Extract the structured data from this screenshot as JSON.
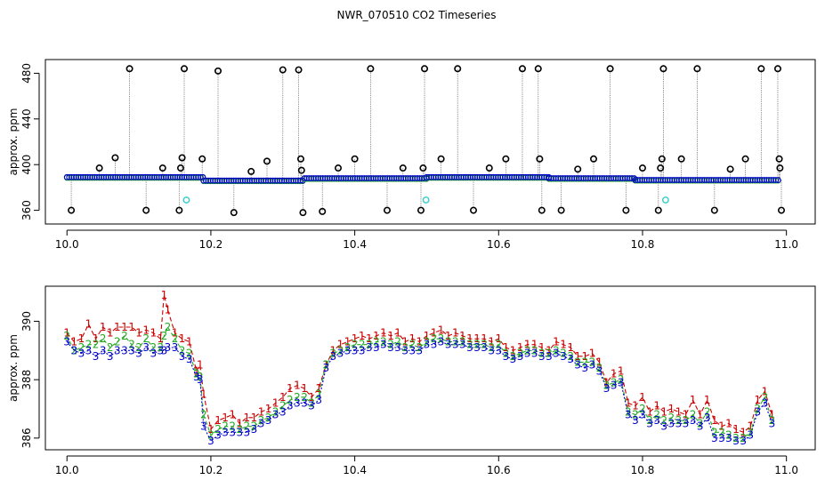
{
  "title": "NWR_070510  CO2 Timeseries",
  "colors": {
    "series1": "#cc0000",
    "series2": "#22aa22",
    "series3": "#0000cc",
    "outlier": "#000000",
    "flagged": "#33cccc",
    "spike_line": "#888888",
    "frame": "#000000"
  },
  "chart_data": [
    {
      "type": "scatter",
      "panel": "top",
      "title": "NWR_070510  CO2 Timeseries",
      "xlabel": "",
      "ylabel": "approx. ppm",
      "xlim": [
        9.97,
        11.04
      ],
      "ylim": [
        348,
        492
      ],
      "x_ticks": [
        "10.0",
        "10.2",
        "10.4",
        "10.6",
        "10.8",
        "11.0"
      ],
      "x_tick_values": [
        10.0,
        10.2,
        10.4,
        10.6,
        10.8,
        11.0
      ],
      "y_ticks": [
        "360",
        "400",
        "440",
        "480"
      ],
      "y_tick_values": [
        360,
        400,
        440,
        480
      ],
      "grid": false,
      "baseline_segments": [
        {
          "x_start": 10.0,
          "x_end": 10.19,
          "y": 389
        },
        {
          "x_start": 10.19,
          "x_end": 10.33,
          "y": 386
        },
        {
          "x_start": 10.33,
          "x_end": 10.5,
          "y": 388
        },
        {
          "x_start": 10.5,
          "x_end": 10.67,
          "y": 389
        },
        {
          "x_start": 10.67,
          "x_end": 10.79,
          "y": 388
        },
        {
          "x_start": 10.79,
          "x_end": 10.99,
          "y": 386.5
        }
      ],
      "outliers": [
        {
          "x": 10.006,
          "y": 360
        },
        {
          "x": 10.045,
          "y": 397
        },
        {
          "x": 10.067,
          "y": 406
        },
        {
          "x": 10.087,
          "y": 484
        },
        {
          "x": 10.11,
          "y": 360
        },
        {
          "x": 10.133,
          "y": 397
        },
        {
          "x": 10.156,
          "y": 360
        },
        {
          "x": 10.158,
          "y": 397
        },
        {
          "x": 10.16,
          "y": 406
        },
        {
          "x": 10.163,
          "y": 484
        },
        {
          "x": 10.188,
          "y": 405
        },
        {
          "x": 10.21,
          "y": 482
        },
        {
          "x": 10.232,
          "y": 358
        },
        {
          "x": 10.256,
          "y": 394
        },
        {
          "x": 10.278,
          "y": 403
        },
        {
          "x": 10.3,
          "y": 483
        },
        {
          "x": 10.322,
          "y": 483
        },
        {
          "x": 10.325,
          "y": 405
        },
        {
          "x": 10.326,
          "y": 395
        },
        {
          "x": 10.328,
          "y": 358
        },
        {
          "x": 10.355,
          "y": 359
        },
        {
          "x": 10.377,
          "y": 397
        },
        {
          "x": 10.4,
          "y": 405
        },
        {
          "x": 10.422,
          "y": 484
        },
        {
          "x": 10.445,
          "y": 360
        },
        {
          "x": 10.467,
          "y": 397
        },
        {
          "x": 10.492,
          "y": 360
        },
        {
          "x": 10.495,
          "y": 397
        },
        {
          "x": 10.497,
          "y": 484
        },
        {
          "x": 10.52,
          "y": 405
        },
        {
          "x": 10.543,
          "y": 484
        },
        {
          "x": 10.565,
          "y": 360
        },
        {
          "x": 10.587,
          "y": 397
        },
        {
          "x": 10.61,
          "y": 405
        },
        {
          "x": 10.633,
          "y": 484
        },
        {
          "x": 10.655,
          "y": 484
        },
        {
          "x": 10.657,
          "y": 405
        },
        {
          "x": 10.66,
          "y": 360
        },
        {
          "x": 10.687,
          "y": 360
        },
        {
          "x": 10.71,
          "y": 396
        },
        {
          "x": 10.732,
          "y": 405
        },
        {
          "x": 10.755,
          "y": 484
        },
        {
          "x": 10.777,
          "y": 360
        },
        {
          "x": 10.8,
          "y": 397
        },
        {
          "x": 10.822,
          "y": 360
        },
        {
          "x": 10.825,
          "y": 397
        },
        {
          "x": 10.827,
          "y": 405
        },
        {
          "x": 10.829,
          "y": 484
        },
        {
          "x": 10.854,
          "y": 405
        },
        {
          "x": 10.876,
          "y": 484
        },
        {
          "x": 10.9,
          "y": 360
        },
        {
          "x": 10.922,
          "y": 396
        },
        {
          "x": 10.943,
          "y": 405
        },
        {
          "x": 10.965,
          "y": 484
        },
        {
          "x": 10.988,
          "y": 484
        },
        {
          "x": 10.99,
          "y": 405
        },
        {
          "x": 10.991,
          "y": 397
        },
        {
          "x": 10.993,
          "y": 360
        }
      ],
      "flagged": [
        {
          "x": 10.166,
          "y": 369
        },
        {
          "x": 10.499,
          "y": 369
        },
        {
          "x": 10.832,
          "y": 369
        }
      ]
    },
    {
      "type": "line",
      "panel": "bottom",
      "xlabel": "",
      "ylabel": "approx. ppm",
      "xlim": [
        9.97,
        11.04
      ],
      "ylim": [
        385.6,
        391.2
      ],
      "x_ticks": [
        "10.0",
        "10.2",
        "10.4",
        "10.6",
        "10.8",
        "11.0"
      ],
      "x_tick_values": [
        10.0,
        10.2,
        10.4,
        10.6,
        10.8,
        11.0
      ],
      "y_ticks": [
        "386",
        "388",
        "390"
      ],
      "y_tick_values": [
        386,
        388,
        390
      ],
      "grid": false,
      "markers": [
        "1",
        "2",
        "3"
      ],
      "series": [
        {
          "marker": "1",
          "x": [
            10.0,
            10.01,
            10.02,
            10.03,
            10.04,
            10.05,
            10.06,
            10.07,
            10.08,
            10.09,
            10.1,
            10.11,
            10.12,
            10.13,
            10.135,
            10.14,
            10.15,
            10.16,
            10.17,
            10.18,
            10.185,
            10.19,
            10.2,
            10.21,
            10.22,
            10.23,
            10.24,
            10.25,
            10.26,
            10.27,
            10.28,
            10.29,
            10.3,
            10.31,
            10.32,
            10.33,
            10.34,
            10.35,
            10.36,
            10.37,
            10.38,
            10.39,
            10.4,
            10.41,
            10.42,
            10.43,
            10.44,
            10.45,
            10.46,
            10.47,
            10.48,
            10.49,
            10.5,
            10.51,
            10.52,
            10.53,
            10.54,
            10.55,
            10.56,
            10.57,
            10.58,
            10.59,
            10.6,
            10.61,
            10.62,
            10.63,
            10.64,
            10.65,
            10.66,
            10.67,
            10.68,
            10.69,
            10.7,
            10.71,
            10.72,
            10.73,
            10.74,
            10.75,
            10.76,
            10.77,
            10.78,
            10.79,
            10.8,
            10.81,
            10.82,
            10.83,
            10.84,
            10.85,
            10.86,
            10.87,
            10.88,
            10.89,
            10.9,
            10.91,
            10.92,
            10.93,
            10.94,
            10.95,
            10.96,
            10.97,
            10.98
          ],
          "values": [
            389.6,
            389.3,
            389.4,
            389.9,
            389.4,
            389.8,
            389.6,
            389.8,
            389.8,
            389.8,
            389.6,
            389.7,
            389.6,
            389.4,
            390.9,
            390.4,
            389.6,
            389.4,
            389.3,
            388.3,
            388.5,
            387.5,
            386.3,
            386.6,
            386.7,
            386.8,
            386.5,
            386.7,
            386.7,
            386.9,
            387.0,
            387.2,
            387.4,
            387.7,
            387.8,
            387.7,
            387.4,
            387.7,
            388.5,
            389.0,
            389.2,
            389.3,
            389.4,
            389.5,
            389.4,
            389.5,
            389.6,
            389.5,
            389.6,
            389.3,
            389.4,
            389.3,
            389.5,
            389.6,
            389.7,
            389.5,
            389.6,
            389.5,
            389.4,
            389.4,
            389.4,
            389.3,
            389.4,
            389.1,
            389.0,
            389.1,
            389.2,
            389.2,
            389.1,
            389.0,
            389.3,
            389.2,
            389.1,
            388.8,
            388.8,
            388.9,
            388.6,
            387.9,
            388.2,
            388.3,
            387.2,
            387.1,
            387.4,
            386.9,
            387.1,
            386.9,
            387.0,
            386.9,
            386.8,
            387.3,
            386.8,
            387.3,
            386.6,
            386.4,
            386.5,
            386.3,
            386.2,
            386.4,
            387.3,
            387.6,
            386.8
          ]
        },
        {
          "marker": "2",
          "x": [
            10.0,
            10.01,
            10.02,
            10.03,
            10.04,
            10.05,
            10.06,
            10.07,
            10.08,
            10.09,
            10.1,
            10.11,
            10.12,
            10.13,
            10.135,
            10.14,
            10.15,
            10.16,
            10.17,
            10.18,
            10.185,
            10.19,
            10.2,
            10.21,
            10.22,
            10.23,
            10.24,
            10.25,
            10.26,
            10.27,
            10.28,
            10.29,
            10.3,
            10.31,
            10.32,
            10.33,
            10.34,
            10.35,
            10.36,
            10.37,
            10.38,
            10.39,
            10.4,
            10.41,
            10.42,
            10.43,
            10.44,
            10.45,
            10.46,
            10.47,
            10.48,
            10.49,
            10.5,
            10.51,
            10.52,
            10.53,
            10.54,
            10.55,
            10.56,
            10.57,
            10.58,
            10.59,
            10.6,
            10.61,
            10.62,
            10.63,
            10.64,
            10.65,
            10.66,
            10.67,
            10.68,
            10.69,
            10.7,
            10.71,
            10.72,
            10.73,
            10.74,
            10.75,
            10.76,
            10.77,
            10.78,
            10.79,
            10.8,
            10.81,
            10.82,
            10.83,
            10.84,
            10.85,
            10.86,
            10.87,
            10.88,
            10.89,
            10.9,
            10.91,
            10.92,
            10.93,
            10.94,
            10.95,
            10.96,
            10.97,
            10.98
          ],
          "values": [
            389.5,
            389.0,
            389.1,
            389.2,
            389.2,
            389.4,
            389.1,
            389.3,
            389.5,
            389.2,
            389.1,
            389.4,
            389.1,
            389.1,
            389.5,
            389.8,
            389.4,
            389.0,
            388.9,
            388.2,
            388.1,
            386.8,
            386.1,
            386.3,
            386.4,
            386.4,
            386.3,
            386.4,
            386.4,
            386.6,
            386.7,
            386.9,
            387.1,
            387.3,
            387.4,
            387.4,
            387.2,
            387.5,
            388.5,
            388.9,
            389.0,
            389.1,
            389.2,
            389.2,
            389.2,
            389.3,
            389.3,
            389.2,
            389.3,
            389.1,
            389.2,
            389.1,
            389.3,
            389.4,
            389.4,
            389.3,
            389.3,
            389.3,
            389.2,
            389.2,
            389.2,
            389.1,
            389.2,
            388.9,
            388.8,
            388.9,
            389.0,
            389.0,
            388.9,
            388.9,
            389.0,
            388.9,
            388.8,
            388.6,
            388.6,
            388.6,
            388.4,
            387.8,
            387.9,
            388.0,
            386.9,
            386.8,
            387.0,
            386.6,
            386.8,
            386.6,
            386.7,
            386.6,
            386.6,
            386.8,
            386.5,
            386.9,
            386.2,
            386.2,
            386.1,
            386.0,
            386.0,
            386.2,
            387.0,
            387.4,
            386.6
          ]
        },
        {
          "marker": "3",
          "x": [
            10.0,
            10.01,
            10.02,
            10.03,
            10.04,
            10.05,
            10.06,
            10.07,
            10.08,
            10.09,
            10.1,
            10.11,
            10.12,
            10.13,
            10.135,
            10.14,
            10.15,
            10.16,
            10.17,
            10.18,
            10.185,
            10.19,
            10.2,
            10.21,
            10.22,
            10.23,
            10.24,
            10.25,
            10.26,
            10.27,
            10.28,
            10.29,
            10.3,
            10.31,
            10.32,
            10.33,
            10.34,
            10.35,
            10.36,
            10.37,
            10.38,
            10.39,
            10.4,
            10.41,
            10.42,
            10.43,
            10.44,
            10.45,
            10.46,
            10.47,
            10.48,
            10.49,
            10.5,
            10.51,
            10.52,
            10.53,
            10.54,
            10.55,
            10.56,
            10.57,
            10.58,
            10.59,
            10.6,
            10.61,
            10.62,
            10.63,
            10.64,
            10.65,
            10.66,
            10.67,
            10.68,
            10.69,
            10.7,
            10.71,
            10.72,
            10.73,
            10.74,
            10.75,
            10.76,
            10.77,
            10.78,
            10.79,
            10.8,
            10.81,
            10.82,
            10.83,
            10.84,
            10.85,
            10.86,
            10.87,
            10.88,
            10.89,
            10.9,
            10.91,
            10.92,
            10.93,
            10.94,
            10.95,
            10.96,
            10.97,
            10.98
          ],
          "values": [
            389.3,
            389.0,
            388.9,
            389.0,
            388.8,
            389.0,
            388.8,
            389.0,
            389.0,
            389.0,
            388.9,
            389.1,
            388.9,
            389.0,
            389.0,
            389.1,
            389.1,
            388.8,
            388.7,
            388.1,
            388.0,
            386.4,
            385.9,
            386.1,
            386.2,
            386.2,
            386.2,
            386.2,
            386.3,
            386.5,
            386.6,
            386.8,
            386.9,
            387.1,
            387.2,
            387.2,
            387.1,
            387.3,
            388.4,
            388.8,
            388.9,
            389.0,
            389.0,
            389.0,
            389.1,
            389.1,
            389.2,
            389.1,
            389.1,
            389.0,
            389.0,
            389.0,
            389.2,
            389.2,
            389.3,
            389.2,
            389.2,
            389.2,
            389.1,
            389.1,
            389.1,
            389.0,
            389.0,
            388.8,
            388.7,
            388.8,
            388.9,
            388.9,
            388.8,
            388.8,
            388.9,
            388.8,
            388.7,
            388.5,
            388.4,
            388.5,
            388.3,
            387.7,
            387.8,
            387.9,
            386.8,
            386.6,
            386.8,
            386.5,
            386.6,
            386.4,
            386.5,
            386.5,
            386.5,
            386.6,
            386.4,
            386.7,
            386.0,
            386.0,
            386.0,
            385.9,
            385.9,
            386.1,
            386.9,
            387.2,
            386.5
          ]
        }
      ]
    }
  ]
}
